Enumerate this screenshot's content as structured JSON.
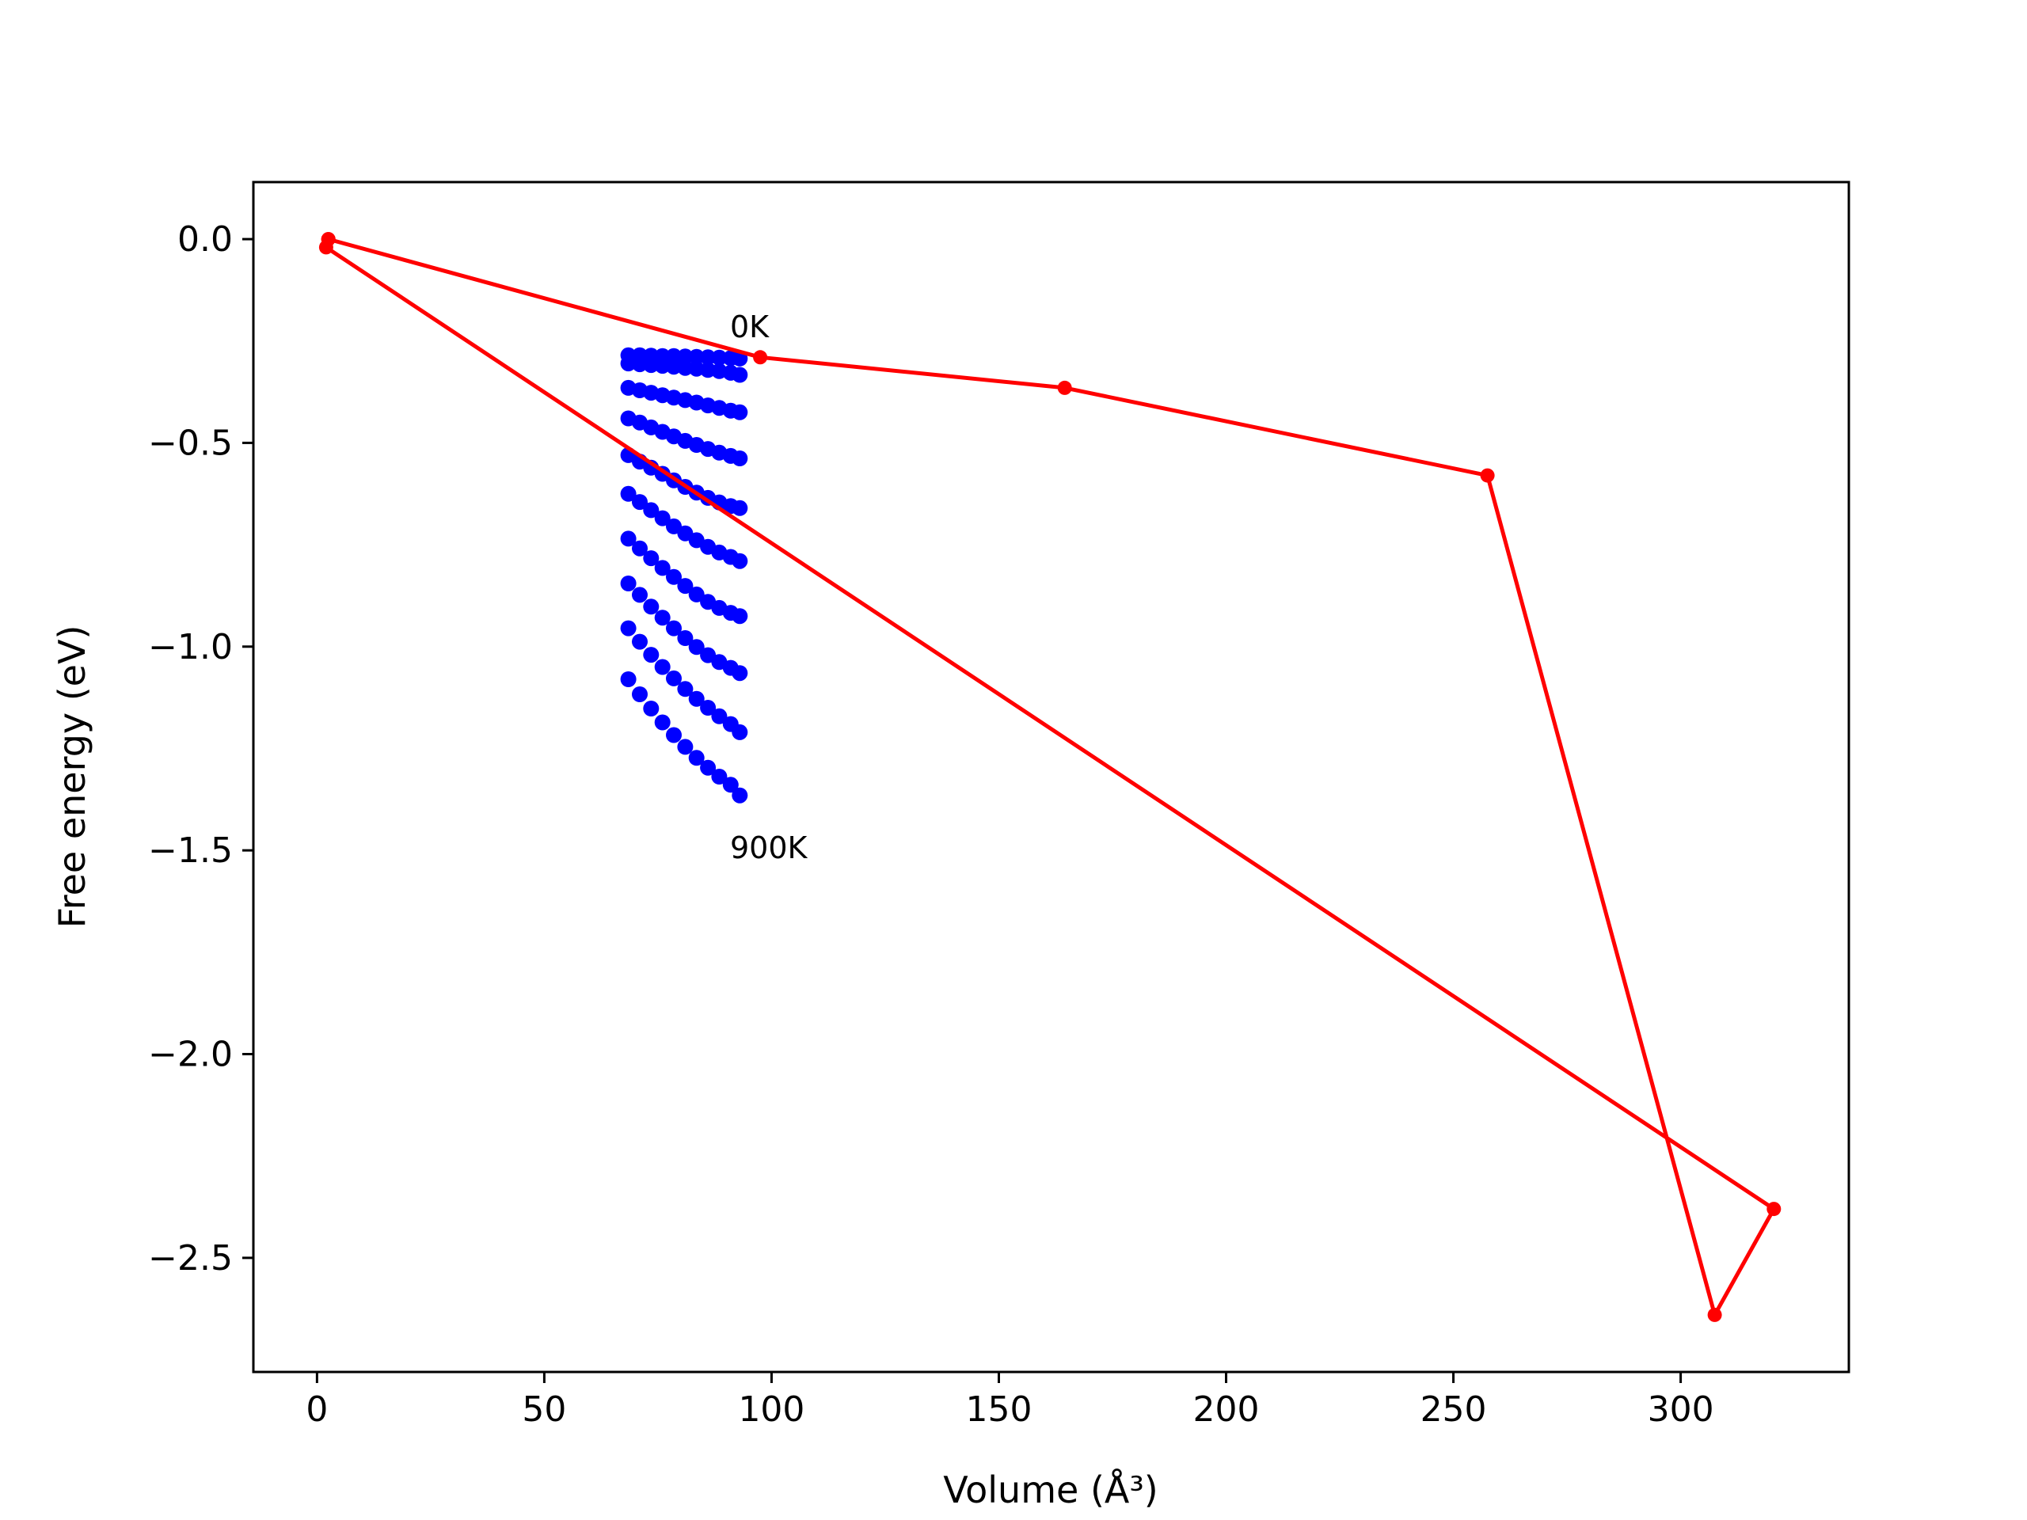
{
  "chart_data": {
    "type": "scatter",
    "title": "",
    "xlabel": "Volume (Å³)",
    "ylabel": "Free energy (eV)",
    "xlim": [
      -14,
      337
    ],
    "ylim": [
      -2.78,
      0.14
    ],
    "xticks": [
      0,
      50,
      100,
      150,
      200,
      250,
      300
    ],
    "yticks": [
      0.0,
      -0.5,
      -1.0,
      -1.5,
      -2.0,
      -2.5
    ],
    "xtick_labels": [
      "0",
      "50",
      "100",
      "150",
      "200",
      "250",
      "300"
    ],
    "ytick_labels": [
      "0.0",
      "−0.5",
      "−1.0",
      "−1.5",
      "−2.0",
      "−2.5"
    ],
    "grid": false,
    "legend": "none",
    "colors": {
      "scatter": "#0000ff",
      "line": "#ff0000"
    },
    "annotations": [
      {
        "text": "0K",
        "x": 90.5,
        "y": -0.24
      },
      {
        "text": "900K",
        "x": 90.5,
        "y": -1.51
      }
    ],
    "scatter_series": {
      "x": [
        68.5,
        71.0,
        73.5,
        76.0,
        78.5,
        81.0,
        83.5,
        86.0,
        88.5,
        91.0,
        93.0
      ],
      "curves": [
        [
          -0.285,
          -0.285,
          -0.286,
          -0.287,
          -0.287,
          -0.288,
          -0.289,
          -0.29,
          -0.291,
          -0.292,
          -0.293
        ],
        [
          -0.305,
          -0.307,
          -0.309,
          -0.311,
          -0.313,
          -0.316,
          -0.318,
          -0.321,
          -0.324,
          -0.328,
          -0.333
        ],
        [
          -0.365,
          -0.371,
          -0.377,
          -0.383,
          -0.389,
          -0.395,
          -0.401,
          -0.408,
          -0.414,
          -0.421,
          -0.425
        ],
        [
          -0.44,
          -0.45,
          -0.462,
          -0.473,
          -0.484,
          -0.495,
          -0.505,
          -0.515,
          -0.524,
          -0.532,
          -0.538
        ],
        [
          -0.53,
          -0.546,
          -0.561,
          -0.576,
          -0.592,
          -0.608,
          -0.622,
          -0.635,
          -0.646,
          -0.655,
          -0.66
        ],
        [
          -0.625,
          -0.645,
          -0.665,
          -0.685,
          -0.705,
          -0.722,
          -0.739,
          -0.755,
          -0.769,
          -0.78,
          -0.79
        ],
        [
          -0.735,
          -0.759,
          -0.783,
          -0.807,
          -0.829,
          -0.851,
          -0.872,
          -0.89,
          -0.905,
          -0.917,
          -0.925
        ],
        [
          -0.845,
          -0.873,
          -0.902,
          -0.929,
          -0.955,
          -0.979,
          -1.001,
          -1.021,
          -1.038,
          -1.052,
          -1.065
        ],
        [
          -0.955,
          -0.988,
          -1.02,
          -1.05,
          -1.078,
          -1.104,
          -1.128,
          -1.15,
          -1.171,
          -1.19,
          -1.21
        ],
        [
          -1.08,
          -1.117,
          -1.152,
          -1.186,
          -1.217,
          -1.246,
          -1.273,
          -1.297,
          -1.319,
          -1.339,
          -1.365
        ]
      ]
    },
    "line_series": {
      "points": [
        {
          "x": 2.5,
          "y": 0.0
        },
        {
          "x": 2.0,
          "y": -0.02
        },
        {
          "x": 320.5,
          "y": -2.38
        },
        {
          "x": 307.5,
          "y": -2.64
        },
        {
          "x": 257.5,
          "y": -0.58
        },
        {
          "x": 164.5,
          "y": -0.365
        },
        {
          "x": 97.5,
          "y": -0.29
        },
        {
          "x": 2.5,
          "y": 0.0
        }
      ]
    }
  }
}
